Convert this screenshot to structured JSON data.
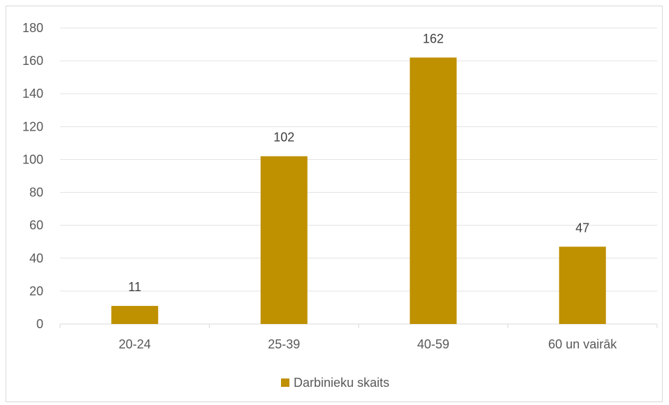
{
  "chart_data": {
    "type": "bar",
    "categories": [
      "20-24",
      "25-39",
      "40-59",
      "60 un vairāk"
    ],
    "series": [
      {
        "name": "Darbinieku skaits",
        "values": [
          11,
          102,
          162,
          47
        ],
        "color": "#bf9000"
      }
    ],
    "ylim": [
      0,
      180
    ],
    "yticks": [
      0,
      20,
      40,
      60,
      80,
      100,
      120,
      140,
      160,
      180
    ],
    "grid": true,
    "legend": "bottom",
    "data_labels": [
      "11",
      "102",
      "162",
      "47"
    ]
  }
}
